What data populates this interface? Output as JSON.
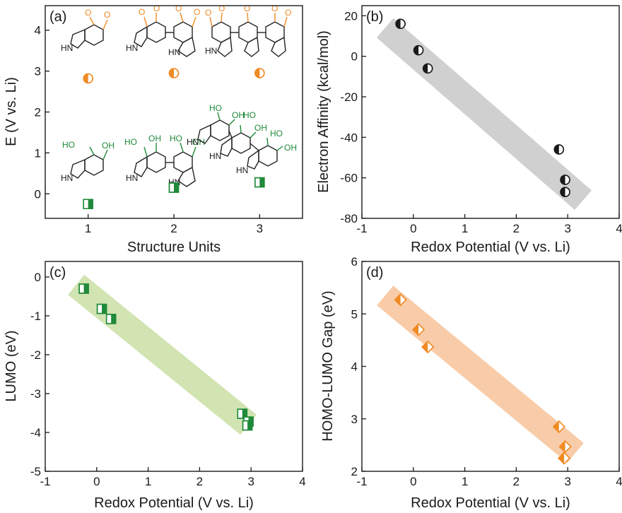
{
  "colors": {
    "orange": "#f08a24",
    "green": "#1f8a3a",
    "grey_band": "#c8c8c8",
    "green_band": "#c9dfa3",
    "orange_band": "#f7c39a",
    "axis": "#1a1a1a"
  },
  "chart_data": [
    {
      "id": "a",
      "type": "scatter",
      "panel_label": "(a)",
      "xlabel": "Structure Units",
      "ylabel": "E (V vs. Li)",
      "xlim": [
        0.5,
        3.5
      ],
      "ylim": [
        -0.6,
        4.6
      ],
      "xticks": [
        1,
        2,
        3
      ],
      "yticks": [
        0,
        1,
        2,
        3,
        4
      ],
      "series": [
        {
          "marker": "circle-half",
          "color": "orange",
          "x": [
            1,
            2,
            3
          ],
          "y": [
            2.82,
            2.95,
            2.95
          ]
        },
        {
          "marker": "square-half",
          "color": "green",
          "x": [
            1,
            2,
            3
          ],
          "y": [
            -0.25,
            0.15,
            0.28
          ]
        }
      ],
      "annotations": {
        "oxidized": {
          "carbonyl": "O",
          "amine": "HN"
        },
        "reduced": {
          "hydroxyl": "HO",
          "hydroxyl_r": "OH",
          "amine": "HN"
        },
        "trimer_labels": [
          "HO",
          "OH",
          "HO",
          "OH",
          "HO",
          "OH"
        ]
      }
    },
    {
      "id": "b",
      "type": "scatter",
      "panel_label": "(b)",
      "xlabel": "Redox Potential (V vs. Li)",
      "ylabel": "Electron Affinity (kcal/mol)",
      "xlim": [
        -1,
        4
      ],
      "ylim": [
        -80,
        25
      ],
      "xticks": [
        -1,
        0,
        1,
        2,
        3,
        4
      ],
      "yticks": [
        -80,
        -60,
        -40,
        -20,
        0,
        20
      ],
      "band": {
        "from": [
          -0.55,
          14
        ],
        "to": [
          3.3,
          -71
        ],
        "width": 0.5
      },
      "series": [
        {
          "marker": "circle-half-dark",
          "color": "axis",
          "x": [
            -0.25,
            0.1,
            0.28,
            2.83,
            2.95,
            2.95
          ],
          "y": [
            16,
            3,
            -6,
            -46,
            -61,
            -67
          ]
        }
      ]
    },
    {
      "id": "c",
      "type": "scatter",
      "panel_label": "(c)",
      "xlabel": "Redox Potential (V vs. Li)",
      "ylabel": "LUMO (eV)",
      "xlim": [
        -1,
        4
      ],
      "ylim": [
        -5,
        0.4
      ],
      "xticks": [
        -1,
        0,
        1,
        2,
        3,
        4
      ],
      "yticks": [
        -5,
        -4,
        -3,
        -2,
        -1,
        0
      ],
      "band": {
        "from": [
          -0.4,
          -0.2
        ],
        "to": [
          2.95,
          -3.8
        ],
        "width": 0.5
      },
      "series": [
        {
          "marker": "square-half",
          "color": "green",
          "x": [
            -0.25,
            0.1,
            0.28,
            2.83,
            2.95,
            2.93
          ],
          "y": [
            -0.3,
            -0.82,
            -1.08,
            -3.52,
            -3.72,
            -3.82
          ]
        }
      ]
    },
    {
      "id": "d",
      "type": "scatter",
      "panel_label": "(d)",
      "xlabel": "Redox Potential (V vs. Li)",
      "ylabel": "HOMO-LUMO Gap (eV)",
      "xlim": [
        -1,
        4
      ],
      "ylim": [
        2,
        6
      ],
      "xticks": [
        -1,
        0,
        1,
        2,
        3,
        4
      ],
      "yticks": [
        2,
        3,
        4,
        5,
        6
      ],
      "band": {
        "from": [
          -0.55,
          5.35
        ],
        "to": [
          3.15,
          2.35
        ],
        "width": 0.5
      },
      "series": [
        {
          "marker": "diamond-half",
          "color": "orange",
          "x": [
            -0.25,
            0.1,
            0.28,
            2.83,
            2.95,
            2.93
          ],
          "y": [
            5.27,
            4.7,
            4.37,
            2.85,
            2.47,
            2.25
          ]
        }
      ]
    }
  ]
}
